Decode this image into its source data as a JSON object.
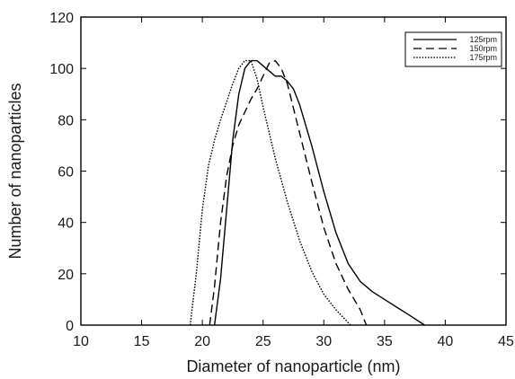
{
  "chart_data": {
    "type": "line",
    "xlabel": "Diameter of nanoparticle (nm)",
    "ylabel": "Number of nanoparticles",
    "xlim": [
      10,
      45
    ],
    "ylim": [
      0,
      120
    ],
    "xticks": [
      10,
      15,
      20,
      25,
      30,
      35,
      40,
      45
    ],
    "yticks": [
      0,
      20,
      40,
      60,
      80,
      100,
      120
    ],
    "grid": false,
    "legend_position": "top-right",
    "series": [
      {
        "name": "125rpm",
        "line_style": "solid",
        "color": "#000000",
        "points": [
          [
            21.0,
            0
          ],
          [
            21.5,
            18
          ],
          [
            22.0,
            45
          ],
          [
            22.5,
            72
          ],
          [
            23.0,
            90
          ],
          [
            23.5,
            100
          ],
          [
            24.0,
            103
          ],
          [
            24.5,
            103
          ],
          [
            25.0,
            101
          ],
          [
            25.5,
            99
          ],
          [
            26.0,
            97
          ],
          [
            26.5,
            97
          ],
          [
            27.0,
            95
          ],
          [
            27.5,
            92
          ],
          [
            28.0,
            86
          ],
          [
            29.0,
            70
          ],
          [
            30.0,
            52
          ],
          [
            31.0,
            36
          ],
          [
            32.0,
            24
          ],
          [
            33.0,
            17
          ],
          [
            34.0,
            13
          ],
          [
            35.0,
            10
          ],
          [
            36.0,
            7
          ],
          [
            37.0,
            4
          ],
          [
            38.3,
            0
          ]
        ]
      },
      {
        "name": "150rpm",
        "line_style": "dashed",
        "color": "#000000",
        "points": [
          [
            20.6,
            0
          ],
          [
            21.0,
            15
          ],
          [
            21.5,
            40
          ],
          [
            22.0,
            58
          ],
          [
            22.5,
            70
          ],
          [
            23.0,
            78
          ],
          [
            23.5,
            83
          ],
          [
            24.0,
            88
          ],
          [
            24.5,
            92
          ],
          [
            25.0,
            97
          ],
          [
            25.5,
            102
          ],
          [
            26.0,
            103
          ],
          [
            26.5,
            100
          ],
          [
            27.0,
            94
          ],
          [
            28.0,
            75
          ],
          [
            29.0,
            56
          ],
          [
            30.0,
            38
          ],
          [
            31.0,
            24
          ],
          [
            32.0,
            14
          ],
          [
            33.0,
            6
          ],
          [
            33.5,
            0
          ]
        ]
      },
      {
        "name": "175rpm",
        "line_style": "dotted",
        "color": "#000000",
        "points": [
          [
            19.0,
            0
          ],
          [
            19.5,
            20
          ],
          [
            20.0,
            45
          ],
          [
            20.5,
            62
          ],
          [
            21.0,
            72
          ],
          [
            21.5,
            80
          ],
          [
            22.0,
            87
          ],
          [
            22.5,
            94
          ],
          [
            23.0,
            100
          ],
          [
            23.5,
            103
          ],
          [
            24.0,
            103
          ],
          [
            24.5,
            96
          ],
          [
            25.0,
            85
          ],
          [
            26.0,
            65
          ],
          [
            27.0,
            48
          ],
          [
            28.0,
            33
          ],
          [
            29.0,
            21
          ],
          [
            30.0,
            12
          ],
          [
            31.0,
            6
          ],
          [
            32.2,
            0
          ]
        ]
      }
    ]
  }
}
